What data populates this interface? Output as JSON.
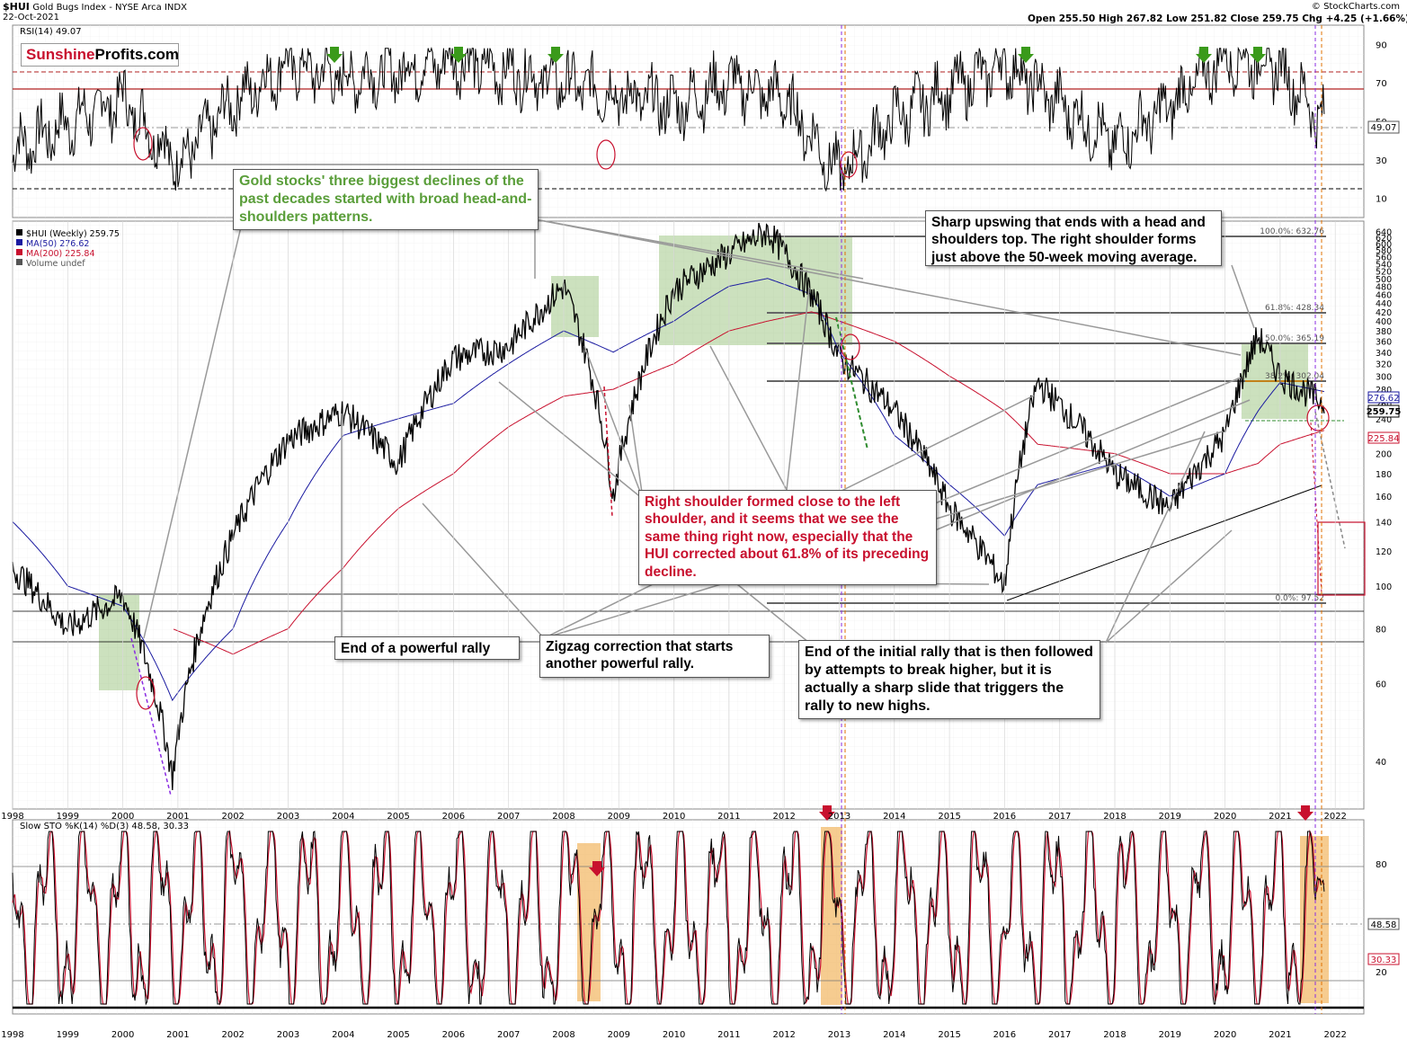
{
  "header": {
    "symbol": "$HUI",
    "name": "Gold Bugs Index - NYSE Arca INDX",
    "date": "22-Oct-2021",
    "ohlc": "Open 255.50  High 267.82  Low 251.82  Close 259.75  Chg +4.25 (+1.66%)",
    "copyright": "© StockCharts.com"
  },
  "logo": {
    "part1": "Sunshine",
    "part2": "Profits.com",
    "color1": "#c8102e"
  },
  "rsi": {
    "label": "RSI(14) 49.07",
    "value_tag": "49.07",
    "ticks": [
      "90",
      "70",
      "50",
      "30",
      "10"
    ],
    "overbought": 70,
    "oversold": 30
  },
  "price": {
    "legend": [
      "$HUI (Weekly) 259.75",
      "MA(50) 276.62",
      "MA(200) 225.84",
      "Volume undef"
    ],
    "legend_colors": [
      "#000000",
      "#1a1aa0",
      "#c8102e",
      "#555555"
    ],
    "ticks": [
      "640",
      "620",
      "600",
      "580",
      "560",
      "540",
      "520",
      "500",
      "480",
      "460",
      "440",
      "420",
      "400",
      "380",
      "360",
      "340",
      "320",
      "300",
      "280",
      "260",
      "240",
      "220",
      "200",
      "180",
      "160",
      "140",
      "120",
      "100",
      "80",
      "60",
      "40"
    ],
    "tags": {
      "ma50": "276.62",
      "close": "259.75",
      "ma200": "225.84"
    },
    "fib_labels": [
      "100.0%: 632.76",
      "61.8%: 428.34",
      "50.0%: 365.19",
      "38.2%: 302.04",
      "0.0%: 97.52"
    ]
  },
  "sto": {
    "label": "Slow STO %K(14) %D(3) 48.58, 30.33",
    "label_value2_color": "#c8102e",
    "ticks": [
      "80",
      "20"
    ],
    "tags": [
      "48.58",
      "30.33"
    ]
  },
  "years": [
    "1998",
    "1999",
    "2000",
    "2001",
    "2002",
    "2003",
    "2004",
    "2005",
    "2006",
    "2007",
    "2008",
    "2009",
    "2010",
    "2011",
    "2012",
    "2013",
    "2014",
    "2015",
    "2016",
    "2017",
    "2018",
    "2019",
    "2020",
    "2021",
    "2022"
  ],
  "annotations": {
    "green_title": "Gold stocks' three biggest declines of the past decades started with broad head-and-shoulders patterns.",
    "sharp_upswing": "Sharp upswing that ends with a head and shoulders top. The right shoulder forms just above the 50-week moving average.",
    "right_shoulder": "Right shoulder formed close to the left shoulder, and it seems that we see the same thing right now, especially that the HUI corrected about 61.8% of its preceding decline.",
    "end_rally": "End of a powerful rally",
    "zigzag": "Zigzag correction that starts another powerful rally.",
    "end_initial": "End of the initial rally that is then followed by attempts to break higher, but it is actually a sharp slide that triggers the rally to new highs."
  },
  "chart_data": [
    {
      "type": "line",
      "title": "RSI(14)",
      "x": [
        "1998",
        "2000",
        "2001",
        "2002",
        "2003",
        "2004",
        "2006",
        "2008",
        "2010",
        "2011",
        "2012",
        "2013",
        "2014",
        "2016",
        "2018",
        "2019",
        "2020",
        "2021",
        "2021.8"
      ],
      "series": [
        {
          "name": "RSI(14)",
          "values": [
            35,
            62,
            28,
            60,
            80,
            72,
            82,
            70,
            58,
            70,
            62,
            22,
            52,
            80,
            38,
            58,
            84,
            78,
            49.07
          ]
        }
      ],
      "ylim": [
        0,
        100
      ],
      "yticks": [
        10,
        30,
        50,
        70,
        90
      ]
    },
    {
      "type": "line",
      "title": "$HUI (Weekly)",
      "log_scale": true,
      "x": [
        "1998",
        "1999",
        "2000",
        "2000.9",
        "2002",
        "2003",
        "2004",
        "2005",
        "2006",
        "2007",
        "2008",
        "2008.9",
        "2010",
        "2011",
        "2011.7",
        "2012.5",
        "2013",
        "2014",
        "2015",
        "2016",
        "2016.6",
        "2018",
        "2019",
        "2020",
        "2020.6",
        "2021",
        "2021.8"
      ],
      "series": [
        {
          "name": "$HUI (Weekly)",
          "values": [
            110,
            80,
            95,
            37,
            130,
            215,
            250,
            190,
            330,
            350,
            480,
            160,
            470,
            570,
            640,
            460,
            330,
            250,
            150,
            100,
            290,
            180,
            150,
            220,
            370,
            300,
            259.75
          ]
        },
        {
          "name": "MA(50)",
          "values": [
            140,
            100,
            90,
            55,
            80,
            140,
            220,
            240,
            260,
            320,
            380,
            340,
            400,
            480,
            500,
            460,
            340,
            220,
            170,
            130,
            170,
            190,
            160,
            180,
            250,
            290,
            276.62
          ]
        },
        {
          "name": "MA(200)",
          "values": [
            null,
            null,
            null,
            80,
            70,
            80,
            110,
            150,
            180,
            230,
            270,
            280,
            320,
            380,
            400,
            420,
            400,
            360,
            300,
            250,
            210,
            200,
            180,
            180,
            190,
            210,
            225.84
          ]
        }
      ],
      "ylim": [
        30,
        650
      ],
      "fibonacci": [
        {
          "level": "100.0%",
          "value": 632.76
        },
        {
          "level": "61.8%",
          "value": 428.34
        },
        {
          "level": "50.0%",
          "value": 365.19
        },
        {
          "level": "38.2%",
          "value": 302.04
        },
        {
          "level": "0.0%",
          "value": 97.52
        }
      ]
    },
    {
      "type": "line",
      "title": "Slow STO %K(14) %D(3)",
      "series": [
        {
          "name": "%K",
          "last": 48.58
        },
        {
          "name": "%D",
          "last": 30.33
        }
      ],
      "ylim": [
        0,
        100
      ],
      "yticks": [
        20,
        80
      ]
    }
  ]
}
